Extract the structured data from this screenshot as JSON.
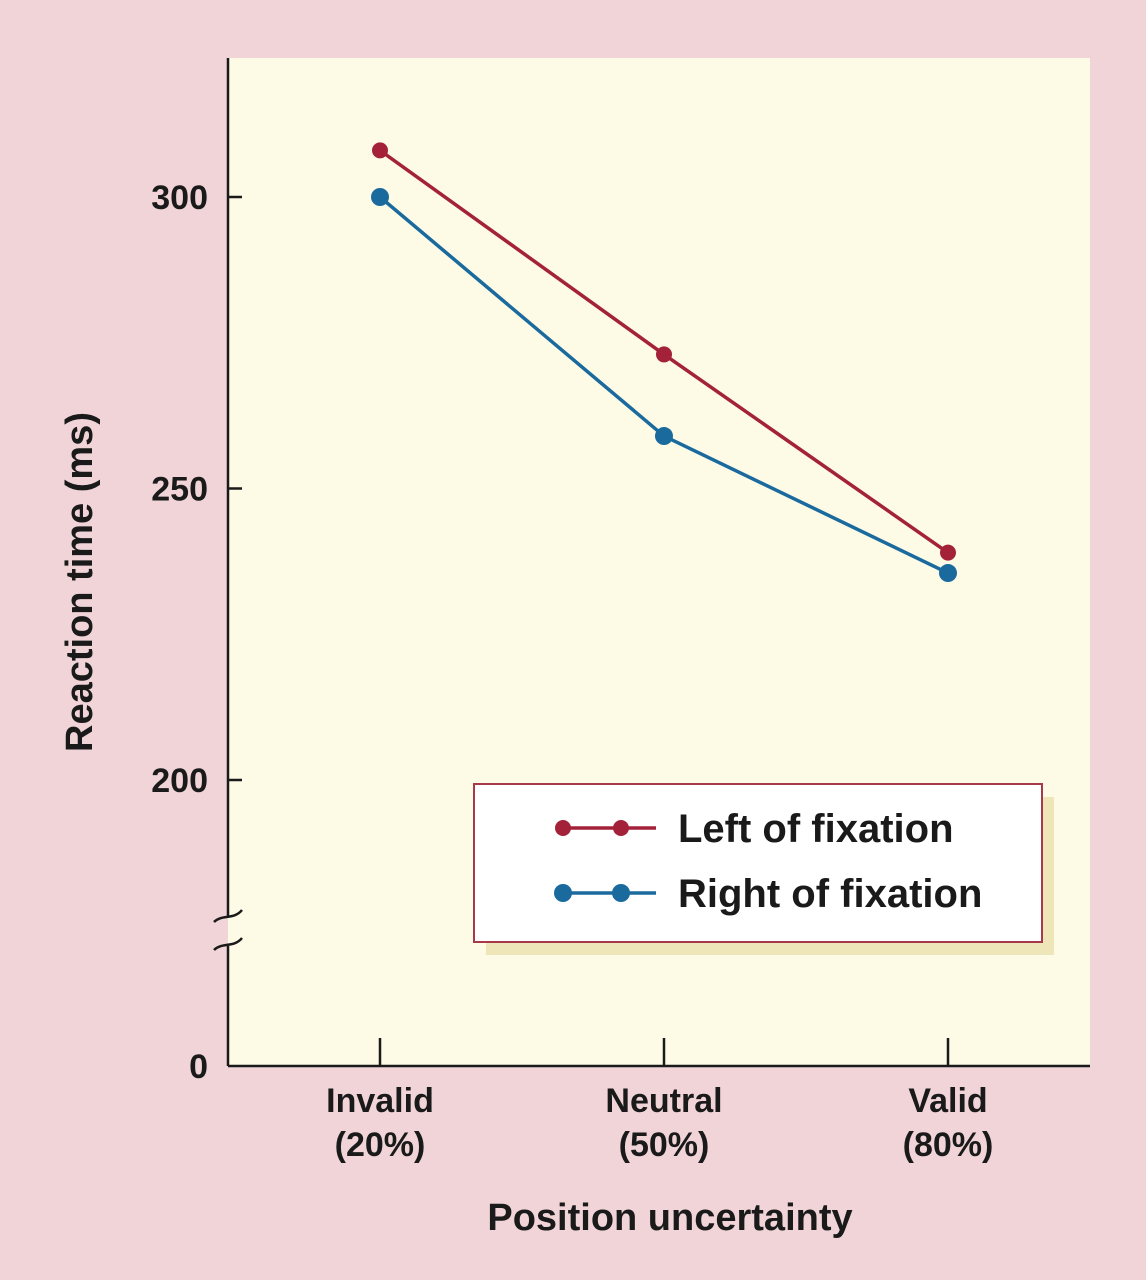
{
  "chart_data": {
    "type": "line",
    "ylabel": "Reaction time (ms)",
    "xlabel": "Position uncertainty",
    "categories": [
      {
        "line1": "Invalid",
        "line2": "(20%)"
      },
      {
        "line1": "Neutral",
        "line2": "(50%)"
      },
      {
        "line1": "Valid",
        "line2": "(80%)"
      }
    ],
    "y_ticks": [
      300,
      250,
      200
    ],
    "y_zero_label": "0",
    "ylim": [
      175,
      325
    ],
    "axis_break": true,
    "legend_position": "lower-right",
    "series": [
      {
        "name": "Left of fixation",
        "color": "#a3223a",
        "values": [
          308,
          273,
          239
        ]
      },
      {
        "name": "Right of fixation",
        "color": "#1a6a9e",
        "values": [
          300,
          259,
          235.5
        ]
      }
    ]
  }
}
